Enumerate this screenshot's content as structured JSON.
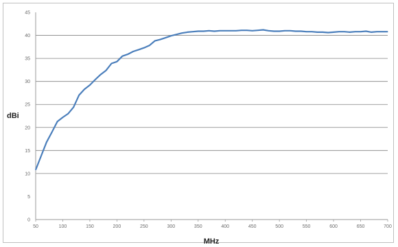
{
  "chart_data": {
    "type": "line",
    "title": "",
    "xlabel": "MHz",
    "ylabel": "dBi",
    "xlim": [
      50,
      700
    ],
    "ylim": [
      0,
      45
    ],
    "x_ticks": [
      50,
      100,
      150,
      200,
      250,
      300,
      350,
      400,
      450,
      500,
      550,
      600,
      650,
      700
    ],
    "y_ticks": [
      0,
      5,
      10,
      15,
      20,
      25,
      30,
      35,
      40,
      45
    ],
    "y_grid_lines": [
      10,
      15,
      20,
      25,
      30,
      35,
      40
    ],
    "series_color": "#4a7ebb",
    "grid_color": "#808080",
    "series": [
      {
        "x": [
          50,
          60,
          70,
          80,
          90,
          100,
          110,
          120,
          130,
          140,
          150,
          160,
          170,
          180,
          190,
          200,
          210,
          220,
          230,
          240,
          250,
          260,
          270,
          280,
          290,
          300,
          310,
          320,
          330,
          340,
          350,
          360,
          370,
          380,
          390,
          400,
          410,
          420,
          430,
          440,
          450,
          460,
          470,
          480,
          490,
          500,
          510,
          520,
          530,
          540,
          550,
          560,
          570,
          580,
          590,
          600,
          610,
          620,
          630,
          640,
          650,
          660,
          670,
          680,
          690,
          700
        ],
        "values": [
          10.8,
          13.8,
          16.8,
          19.0,
          21.3,
          22.2,
          23.0,
          24.4,
          27.0,
          28.3,
          29.2,
          30.4,
          31.5,
          32.4,
          33.9,
          34.3,
          35.5,
          35.9,
          36.5,
          36.9,
          37.3,
          37.8,
          38.8,
          39.1,
          39.5,
          39.9,
          40.2,
          40.5,
          40.7,
          40.8,
          40.9,
          40.9,
          41.0,
          40.9,
          41.0,
          41.0,
          41.0,
          41.0,
          41.1,
          41.1,
          41.0,
          41.1,
          41.2,
          41.0,
          40.9,
          40.9,
          41.0,
          41.0,
          40.9,
          40.9,
          40.8,
          40.8,
          40.7,
          40.7,
          40.6,
          40.7,
          40.8,
          40.8,
          40.7,
          40.8,
          40.8,
          40.9,
          40.7,
          40.8,
          40.8,
          40.8
        ]
      }
    ]
  }
}
